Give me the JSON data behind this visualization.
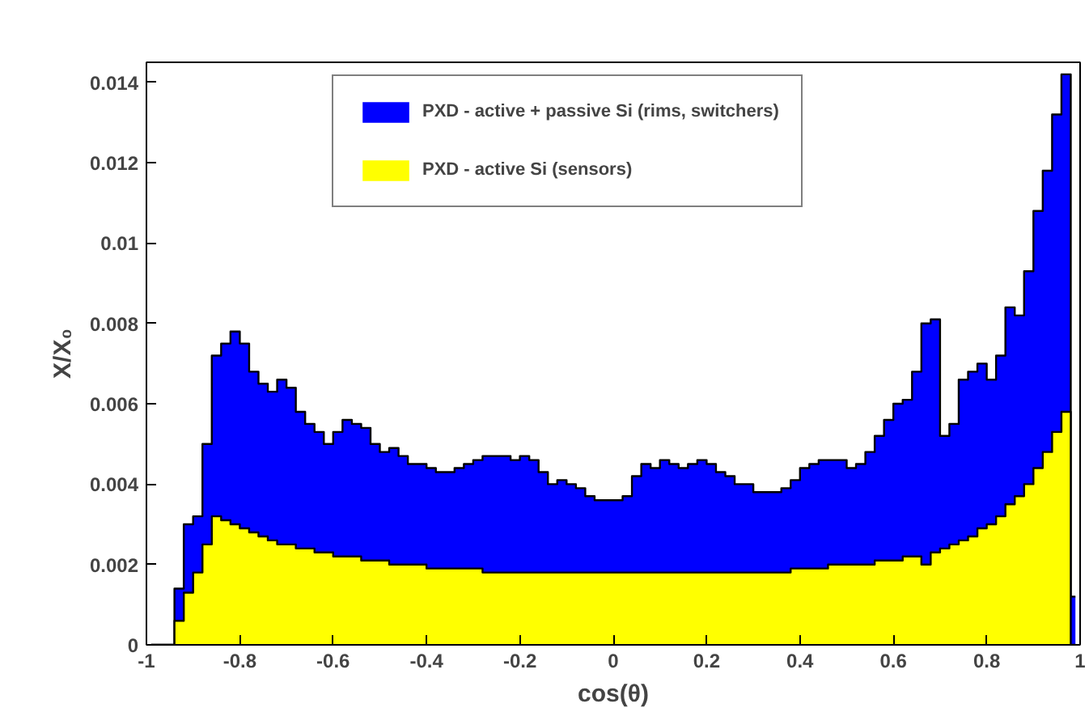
{
  "chart_data": {
    "type": "area",
    "xlabel": "cos(θ)",
    "ylabel": "X/X₀",
    "x": [
      -0.99,
      -0.97,
      -0.95,
      -0.93,
      -0.91,
      -0.89,
      -0.87,
      -0.85,
      -0.83,
      -0.81,
      -0.79,
      -0.77,
      -0.75,
      -0.73,
      -0.71,
      -0.69,
      -0.67,
      -0.65,
      -0.63,
      -0.61,
      -0.59,
      -0.57,
      -0.55,
      -0.53,
      -0.51,
      -0.49,
      -0.47,
      -0.45,
      -0.43,
      -0.41,
      -0.39,
      -0.37,
      -0.35,
      -0.33,
      -0.31,
      -0.29,
      -0.27,
      -0.25,
      -0.23,
      -0.21,
      -0.19,
      -0.17,
      -0.15,
      -0.13,
      -0.11,
      -0.09,
      -0.07,
      -0.05,
      -0.03,
      -0.01,
      0.01,
      0.03,
      0.05,
      0.07,
      0.09,
      0.11,
      0.13,
      0.15,
      0.17,
      0.19,
      0.21,
      0.23,
      0.25,
      0.27,
      0.29,
      0.31,
      0.33,
      0.35,
      0.37,
      0.39,
      0.41,
      0.43,
      0.45,
      0.47,
      0.49,
      0.51,
      0.53,
      0.55,
      0.57,
      0.59,
      0.61,
      0.63,
      0.65,
      0.67,
      0.69,
      0.71,
      0.73,
      0.75,
      0.77,
      0.79,
      0.81,
      0.83,
      0.85,
      0.87,
      0.89,
      0.91,
      0.93,
      0.95,
      0.97,
      0.99
    ],
    "series": [
      {
        "name": "PXD - active + passive Si (rims, switchers)",
        "color": "#0000ff",
        "values": [
          0,
          0,
          0,
          0.0014,
          0.003,
          0.0032,
          0.005,
          0.0072,
          0.0075,
          0.0078,
          0.0075,
          0.0068,
          0.0065,
          0.0063,
          0.0066,
          0.0064,
          0.0058,
          0.0055,
          0.0053,
          0.005,
          0.0053,
          0.0056,
          0.0055,
          0.0054,
          0.005,
          0.0048,
          0.0049,
          0.0047,
          0.0045,
          0.0045,
          0.0044,
          0.0043,
          0.0043,
          0.0044,
          0.0045,
          0.0046,
          0.0047,
          0.0047,
          0.0047,
          0.0046,
          0.0047,
          0.0046,
          0.0043,
          0.004,
          0.0041,
          0.004,
          0.0039,
          0.0037,
          0.0036,
          0.0036,
          0.0036,
          0.0037,
          0.0042,
          0.0045,
          0.0044,
          0.0046,
          0.0045,
          0.0044,
          0.0045,
          0.0046,
          0.0045,
          0.0043,
          0.0042,
          0.004,
          0.004,
          0.0038,
          0.0038,
          0.0038,
          0.0039,
          0.0041,
          0.0044,
          0.0045,
          0.0046,
          0.0046,
          0.0046,
          0.0044,
          0.0045,
          0.0048,
          0.0052,
          0.0056,
          0.006,
          0.0061,
          0.0068,
          0.008,
          0.0081,
          0.0052,
          0.0055,
          0.0066,
          0.0068,
          0.007,
          0.0066,
          0.0072,
          0.0084,
          0.0082,
          0.0093,
          0.0108,
          0.0118,
          0.0132,
          0.0142,
          0.0012
        ]
      },
      {
        "name": "PXD - active Si (sensors)",
        "color": "#ffff00",
        "values": [
          0,
          0,
          0,
          0.0006,
          0.0013,
          0.0018,
          0.0025,
          0.0032,
          0.0031,
          0.003,
          0.0029,
          0.0028,
          0.0027,
          0.0026,
          0.0025,
          0.0025,
          0.0024,
          0.0024,
          0.0023,
          0.0023,
          0.0022,
          0.0022,
          0.0022,
          0.0021,
          0.0021,
          0.0021,
          0.002,
          0.002,
          0.002,
          0.002,
          0.0019,
          0.0019,
          0.0019,
          0.0019,
          0.0019,
          0.0019,
          0.0018,
          0.0018,
          0.0018,
          0.0018,
          0.0018,
          0.0018,
          0.0018,
          0.0018,
          0.0018,
          0.0018,
          0.0018,
          0.0018,
          0.0018,
          0.0018,
          0.0018,
          0.0018,
          0.0018,
          0.0018,
          0.0018,
          0.0018,
          0.0018,
          0.0018,
          0.0018,
          0.0018,
          0.0018,
          0.0018,
          0.0018,
          0.0018,
          0.0018,
          0.0018,
          0.0018,
          0.0018,
          0.0018,
          0.0019,
          0.0019,
          0.0019,
          0.0019,
          0.002,
          0.002,
          0.002,
          0.002,
          0.002,
          0.0021,
          0.0021,
          0.0021,
          0.0022,
          0.0022,
          0.002,
          0.0023,
          0.0024,
          0.0025,
          0.0026,
          0.0027,
          0.0029,
          0.003,
          0.0032,
          0.0035,
          0.0037,
          0.004,
          0.0044,
          0.0048,
          0.0053,
          0.0058,
          0
        ]
      }
    ],
    "xlim": [
      -1,
      1
    ],
    "ylim": [
      0,
      0.0145
    ],
    "xticks": [
      -1,
      -0.8,
      -0.6,
      -0.4,
      -0.2,
      0,
      0.2,
      0.4,
      0.6,
      0.8,
      1
    ],
    "yticks": [
      0,
      0.002,
      0.004,
      0.006,
      0.008,
      0.01,
      0.012,
      0.014
    ],
    "grid": false,
    "legend": "top right"
  }
}
